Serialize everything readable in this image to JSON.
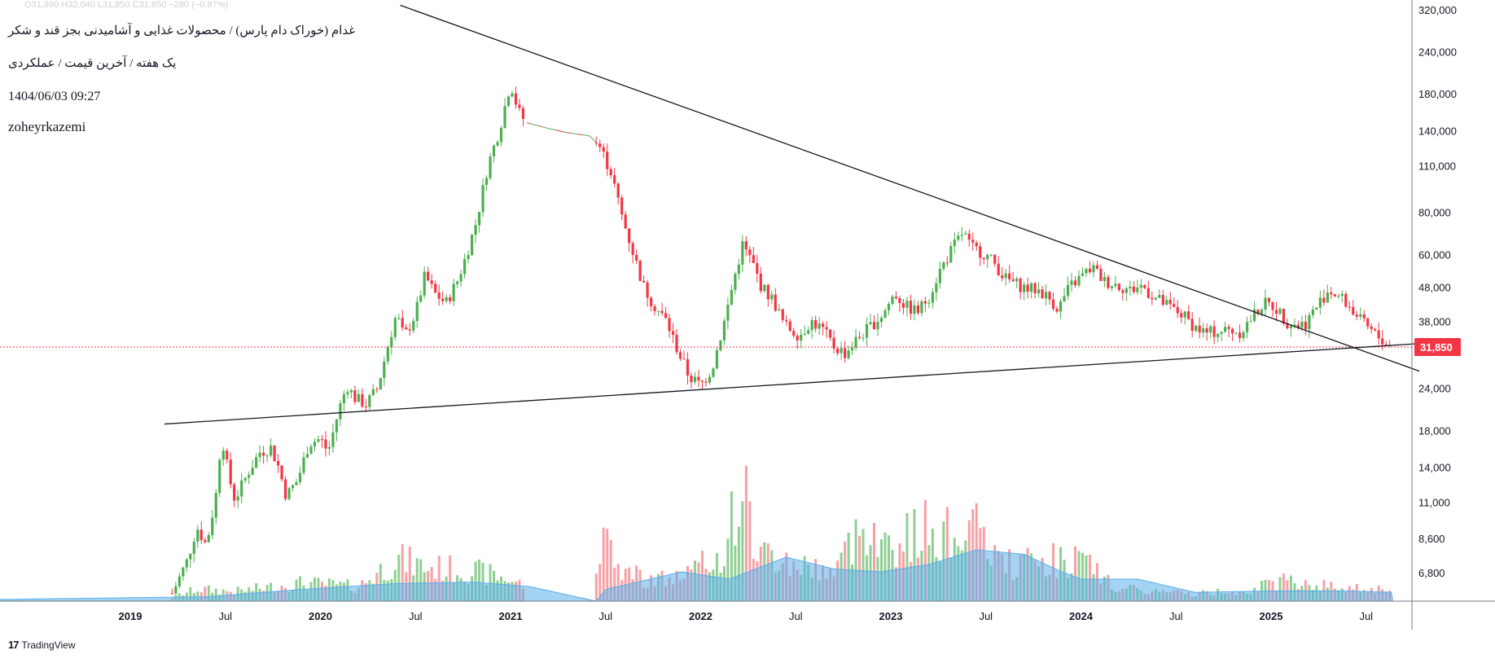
{
  "header": {
    "ohlc": "O31,990  H32,040  L31,850  C31,850  −280 (−0.87%)",
    "title": "غدام (خوراک دام پارس) / محصولات غذایی و آشامیدنی بجز قند و شکر",
    "subtitle": "یک هفته / آخرین قیمت / عملکردی",
    "datetime": "1404/06/03 09:27",
    "author": "zoheyrkazemi"
  },
  "branding": {
    "logo": "17",
    "name": "TradingView"
  },
  "colors": {
    "up": "#4caf50",
    "down": "#f23645",
    "volume_up": "#8fcf93",
    "volume_down": "#f7a1a6",
    "volume_ma": "#5aaee9",
    "last_price_bg": "#f23645"
  },
  "chart_data": {
    "type": "candlestick",
    "scale": "log",
    "interval": "1W",
    "last_price": 31850,
    "last_price_label": "31,850",
    "y_ticks": [
      {
        "v": 320000,
        "label": "320,000"
      },
      {
        "v": 240000,
        "label": "240,000"
      },
      {
        "v": 180000,
        "label": "180,000"
      },
      {
        "v": 140000,
        "label": "140,000"
      },
      {
        "v": 110000,
        "label": "110,000"
      },
      {
        "v": 80000,
        "label": "80,000"
      },
      {
        "v": 60000,
        "label": "60,000"
      },
      {
        "v": 48000,
        "label": "48,000"
      },
      {
        "v": 38000,
        "label": "38,000"
      },
      {
        "v": 24000,
        "label": "24,000"
      },
      {
        "v": 18000,
        "label": "18,000"
      },
      {
        "v": 14000,
        "label": "14,000"
      },
      {
        "v": 11000,
        "label": "11,000"
      },
      {
        "v": 8600,
        "label": "8,600"
      },
      {
        "v": 6800,
        "label": "6,800"
      }
    ],
    "x_ticks": [
      {
        "t": 2019.0,
        "label": "2019",
        "bold": true
      },
      {
        "t": 2019.5,
        "label": "Jul"
      },
      {
        "t": 2020.0,
        "label": "2020",
        "bold": true
      },
      {
        "t": 2020.5,
        "label": "Jul"
      },
      {
        "t": 2021.0,
        "label": "2021",
        "bold": true
      },
      {
        "t": 2021.5,
        "label": "Jul"
      },
      {
        "t": 2022.0,
        "label": "2022",
        "bold": true
      },
      {
        "t": 2022.5,
        "label": "Jul"
      },
      {
        "t": 2023.0,
        "label": "2023",
        "bold": true
      },
      {
        "t": 2023.5,
        "label": "Jul"
      },
      {
        "t": 2024.0,
        "label": "2024",
        "bold": true
      },
      {
        "t": 2024.5,
        "label": "Jul"
      },
      {
        "t": 2025.0,
        "label": "2025",
        "bold": true
      },
      {
        "t": 2025.5,
        "label": "Jul"
      }
    ],
    "price_path": [
      [
        2018.2,
        5500
      ],
      [
        2019.22,
        5900
      ],
      [
        2019.3,
        7400
      ],
      [
        2019.35,
        9300
      ],
      [
        2019.4,
        8200
      ],
      [
        2019.45,
        11500
      ],
      [
        2019.48,
        17500
      ],
      [
        2019.52,
        13000
      ],
      [
        2019.55,
        11200
      ],
      [
        2019.62,
        13500
      ],
      [
        2019.68,
        15500
      ],
      [
        2019.74,
        16000
      ],
      [
        2019.78,
        14000
      ],
      [
        2019.82,
        11500
      ],
      [
        2019.88,
        12800
      ],
      [
        2019.94,
        16500
      ],
      [
        2020.0,
        17000
      ],
      [
        2020.04,
        15500
      ],
      [
        2020.1,
        21000
      ],
      [
        2020.14,
        24500
      ],
      [
        2020.18,
        22500
      ],
      [
        2020.24,
        21500
      ],
      [
        2020.3,
        24000
      ],
      [
        2020.36,
        33000
      ],
      [
        2020.4,
        40000
      ],
      [
        2020.44,
        34000
      ],
      [
        2020.5,
        40000
      ],
      [
        2020.55,
        52000
      ],
      [
        2020.6,
        46000
      ],
      [
        2020.66,
        43000
      ],
      [
        2020.72,
        50000
      ],
      [
        2020.76,
        58000
      ],
      [
        2020.82,
        75000
      ],
      [
        2020.88,
        110000
      ],
      [
        2020.94,
        140000
      ],
      [
        2021.0,
        195000
      ],
      [
        2021.04,
        160000
      ],
      [
        2021.08,
        148000
      ],
      [
        2021.2,
        142000
      ],
      [
        2021.3,
        138000
      ],
      [
        2021.42,
        135000
      ],
      [
        2021.47,
        125000
      ],
      [
        2021.53,
        105000
      ],
      [
        2021.58,
        80000
      ],
      [
        2021.64,
        62000
      ],
      [
        2021.7,
        48000
      ],
      [
        2021.76,
        42000
      ],
      [
        2021.82,
        38000
      ],
      [
        2021.88,
        31000
      ],
      [
        2021.94,
        26000
      ],
      [
        2022.0,
        24500
      ],
      [
        2022.06,
        27500
      ],
      [
        2022.12,
        37000
      ],
      [
        2022.18,
        52000
      ],
      [
        2022.22,
        64000
      ],
      [
        2022.27,
        57000
      ],
      [
        2022.32,
        48000
      ],
      [
        2022.38,
        44000
      ],
      [
        2022.44,
        37000
      ],
      [
        2022.52,
        34500
      ],
      [
        2022.58,
        38000
      ],
      [
        2022.64,
        36000
      ],
      [
        2022.7,
        32000
      ],
      [
        2022.76,
        30500
      ],
      [
        2022.82,
        33500
      ],
      [
        2022.9,
        37000
      ],
      [
        2022.96,
        40000
      ],
      [
        2023.02,
        46000
      ],
      [
        2023.08,
        42000
      ],
      [
        2023.14,
        40500
      ],
      [
        2023.2,
        45000
      ],
      [
        2023.26,
        54000
      ],
      [
        2023.32,
        62000
      ],
      [
        2023.38,
        70000
      ],
      [
        2023.42,
        63000
      ],
      [
        2023.48,
        61000
      ],
      [
        2023.54,
        57000
      ],
      [
        2023.6,
        51000
      ],
      [
        2023.66,
        49000
      ],
      [
        2023.72,
        47500
      ],
      [
        2023.78,
        47000
      ],
      [
        2023.84,
        44000
      ],
      [
        2023.88,
        41500
      ],
      [
        2023.94,
        48000
      ],
      [
        2024.0,
        51500
      ],
      [
        2024.06,
        55000
      ],
      [
        2024.12,
        50000
      ],
      [
        2024.18,
        49000
      ],
      [
        2024.26,
        47000
      ],
      [
        2024.32,
        48500
      ],
      [
        2024.38,
        45000
      ],
      [
        2024.46,
        42000
      ],
      [
        2024.54,
        39500
      ],
      [
        2024.6,
        36500
      ],
      [
        2024.66,
        35000
      ],
      [
        2024.72,
        35500
      ],
      [
        2024.78,
        35800
      ],
      [
        2024.84,
        35300
      ],
      [
        2024.9,
        39000
      ],
      [
        2024.96,
        43000
      ],
      [
        2025.02,
        42000
      ],
      [
        2025.08,
        38000
      ],
      [
        2025.14,
        37000
      ],
      [
        2025.18,
        37500
      ],
      [
        2025.24,
        42000
      ],
      [
        2025.3,
        47000
      ],
      [
        2025.36,
        45000
      ],
      [
        2025.42,
        41500
      ],
      [
        2025.48,
        37500
      ],
      [
        2025.54,
        35000
      ],
      [
        2025.58,
        33500
      ],
      [
        2025.63,
        31850
      ]
    ],
    "volume_peaks": [
      [
        2018.2,
        0.01
      ],
      [
        2019.2,
        0.02
      ],
      [
        2019.35,
        0.1
      ],
      [
        2019.55,
        0.08
      ],
      [
        2019.9,
        0.15
      ],
      [
        2020.2,
        0.12
      ],
      [
        2020.4,
        0.35
      ],
      [
        2020.55,
        0.28
      ],
      [
        2020.8,
        0.25
      ],
      [
        2021.0,
        0.18
      ],
      [
        2021.08,
        0.12
      ],
      [
        2021.4,
        0.0
      ],
      [
        2021.47,
        0.55
      ],
      [
        2021.55,
        0.3
      ],
      [
        2021.7,
        0.2
      ],
      [
        2021.85,
        0.18
      ],
      [
        2022.1,
        0.35
      ],
      [
        2022.22,
        0.95
      ],
      [
        2022.3,
        0.4
      ],
      [
        2022.5,
        0.3
      ],
      [
        2022.7,
        0.25
      ],
      [
        2022.9,
        0.72
      ],
      [
        2022.96,
        0.45
      ],
      [
        2023.2,
        0.6
      ],
      [
        2023.3,
        0.55
      ],
      [
        2023.4,
        0.65
      ],
      [
        2023.6,
        0.3
      ],
      [
        2023.9,
        0.35
      ],
      [
        2024.0,
        0.33
      ],
      [
        2024.2,
        0.1
      ],
      [
        2024.6,
        0.06
      ],
      [
        2024.9,
        0.1
      ],
      [
        2025.1,
        0.18
      ],
      [
        2025.3,
        0.12
      ],
      [
        2025.6,
        0.1
      ]
    ],
    "volume_ma": [
      [
        2018.2,
        0.01
      ],
      [
        2019.4,
        0.03
      ],
      [
        2019.9,
        0.08
      ],
      [
        2020.4,
        0.12
      ],
      [
        2020.8,
        0.13
      ],
      [
        2021.1,
        0.1
      ],
      [
        2021.45,
        0.0
      ],
      [
        2021.5,
        0.08
      ],
      [
        2021.9,
        0.2
      ],
      [
        2022.15,
        0.15
      ],
      [
        2022.45,
        0.3
      ],
      [
        2022.7,
        0.22
      ],
      [
        2022.95,
        0.2
      ],
      [
        2023.2,
        0.25
      ],
      [
        2023.45,
        0.35
      ],
      [
        2023.7,
        0.32
      ],
      [
        2023.9,
        0.2
      ],
      [
        2024.0,
        0.15
      ],
      [
        2024.3,
        0.15
      ],
      [
        2024.6,
        0.06
      ],
      [
        2025.0,
        0.07
      ],
      [
        2025.4,
        0.07
      ],
      [
        2025.64,
        0.06
      ]
    ],
    "trendlines": [
      {
        "name": "resistance",
        "points": [
          [
            2020.42,
            330000
          ],
          [
            2025.78,
            27000
          ]
        ]
      },
      {
        "name": "support",
        "points": [
          [
            2019.18,
            18800
          ],
          [
            2025.78,
            32600
          ]
        ]
      }
    ]
  }
}
